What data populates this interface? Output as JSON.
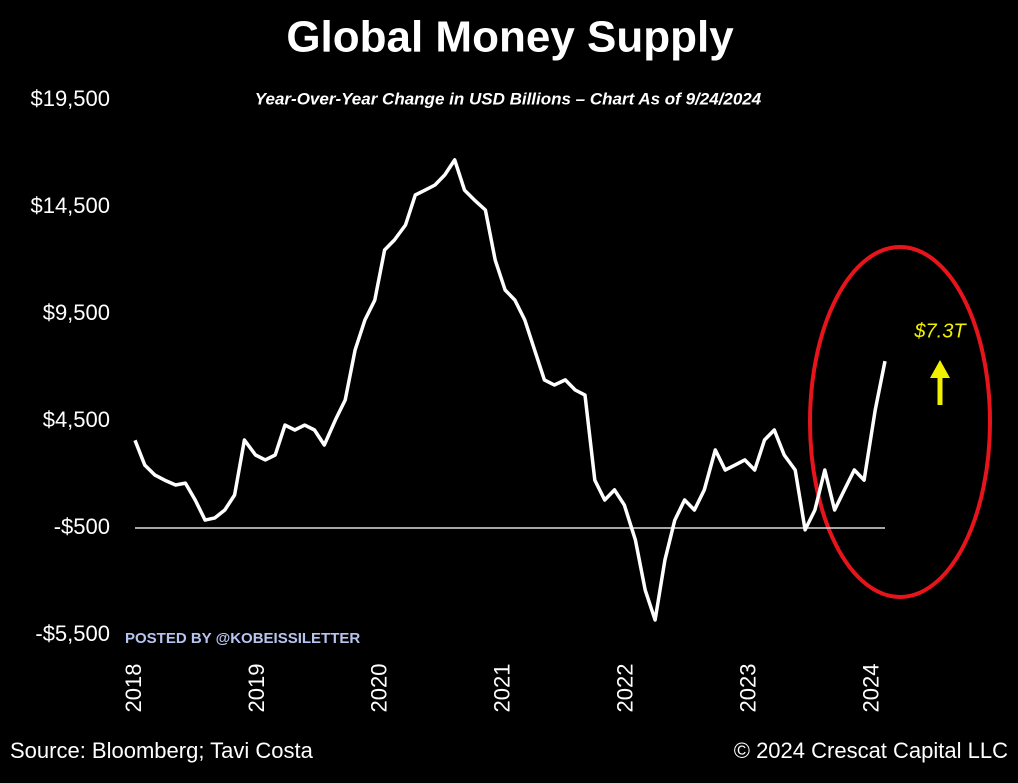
{
  "chart_data": {
    "type": "line",
    "title": "Global Money Supply",
    "subtitle": "Year-Over-Year Change in USD Billions – Chart As of 9/24/2024",
    "watermark": "POSTED BY @KOBEISSILETTER",
    "source": "Source: Bloomberg; Tavi Costa",
    "copyright": "© 2024 Crescat Capital LLC",
    "annotation": "$7.3T",
    "x": [
      2018.0,
      2018.08,
      2018.16,
      2018.24,
      2018.33,
      2018.41,
      2018.49,
      2018.57,
      2018.65,
      2018.73,
      2018.81,
      2018.89,
      2018.98,
      2019.06,
      2019.14,
      2019.22,
      2019.3,
      2019.38,
      2019.46,
      2019.54,
      2019.63,
      2019.71,
      2019.79,
      2019.87,
      2019.95,
      2020.03,
      2020.11,
      2020.2,
      2020.28,
      2020.36,
      2020.44,
      2020.52,
      2020.6,
      2020.68,
      2020.76,
      2020.85,
      2020.93,
      2021.01,
      2021.09,
      2021.17,
      2021.25,
      2021.33,
      2021.41,
      2021.5,
      2021.58,
      2021.66,
      2021.74,
      2021.82,
      2021.9,
      2021.98,
      2022.07,
      2022.15,
      2022.23,
      2022.31,
      2022.39,
      2022.47,
      2022.55,
      2022.63,
      2022.72,
      2022.8,
      2022.88,
      2022.96,
      2023.04,
      2023.12,
      2023.2,
      2023.28,
      2023.37,
      2023.45,
      2023.53,
      2023.61,
      2023.69,
      2023.77,
      2023.85,
      2023.93,
      2024.02,
      2024.1
    ],
    "series": [
      {
        "color": "#ffffff",
        "values": [
          3600,
          2440,
          1980,
          1740,
          1510,
          1600,
          810,
          -130,
          -30,
          340,
          1040,
          3610,
          2910,
          2680,
          2910,
          4310,
          4080,
          4310,
          4080,
          3380,
          4550,
          5480,
          7820,
          9220,
          10150,
          12490,
          12960,
          13660,
          15060,
          15290,
          15530,
          16000,
          16700,
          15290,
          14830,
          14360,
          12020,
          10620,
          10150,
          9220,
          7820,
          6420,
          6180,
          6420,
          5950,
          5710,
          1740,
          810,
          1280,
          580,
          -1060,
          -3400,
          -4800,
          -2000,
          -130,
          810,
          340,
          1280,
          3150,
          2210,
          2440,
          2680,
          2210,
          3610,
          4080,
          2910,
          2210,
          -590,
          340,
          2210,
          340,
          1280,
          2210,
          1740,
          5010,
          7300
        ]
      }
    ],
    "xlim": [
      2018,
      2024.1
    ],
    "xticks": [
      2018,
      2019,
      2020,
      2021,
      2022,
      2023,
      2024
    ],
    "ylim": [
      -5500,
      19500
    ],
    "yticks": [
      {
        "value": -5500,
        "label": "-$5,500"
      },
      {
        "value": -500,
        "label": "-$500"
      },
      {
        "value": 4500,
        "label": "$4,500"
      },
      {
        "value": 9500,
        "label": "$9,500"
      },
      {
        "value": 14500,
        "label": "$14,500"
      },
      {
        "value": 19500,
        "label": "$19,500"
      }
    ],
    "reference_line": -500
  }
}
